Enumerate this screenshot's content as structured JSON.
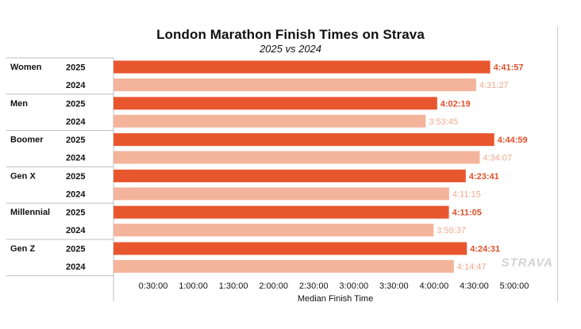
{
  "chart_data": {
    "type": "bar",
    "orientation": "horizontal",
    "title": "London Marathon Finish Times on Strava",
    "subtitle": "2025 vs 2024",
    "xlabel": "Median Finish Time",
    "ylabel": "",
    "xlim_seconds": [
      0,
      19800
    ],
    "xticks": [
      "0:30:00",
      "1:00:00",
      "1:30:00",
      "2:00:00",
      "2:30:00",
      "3:00:00",
      "3:30:00",
      "4:00:00",
      "4:30:00",
      "5:00:00"
    ],
    "groups": [
      "Women",
      "Men",
      "Boomer",
      "Gen X",
      "Millennial",
      "Gen Z"
    ],
    "series": [
      {
        "name": "2025",
        "color": "#e8562e",
        "label_color": "#e0502a",
        "values": [
          "4:41:57",
          "4:02:19",
          "4:44:59",
          "4:23:41",
          "4:11:05",
          "4:24:31"
        ]
      },
      {
        "name": "2024",
        "color": "#f4b49b",
        "label_color": "#efa88d",
        "values": [
          "4:31:27",
          "3:53:45",
          "4:34:07",
          "4:11:15",
          "3:59:37",
          "4:14:47"
        ]
      }
    ],
    "grid": false,
    "watermark": "STRAVA"
  }
}
